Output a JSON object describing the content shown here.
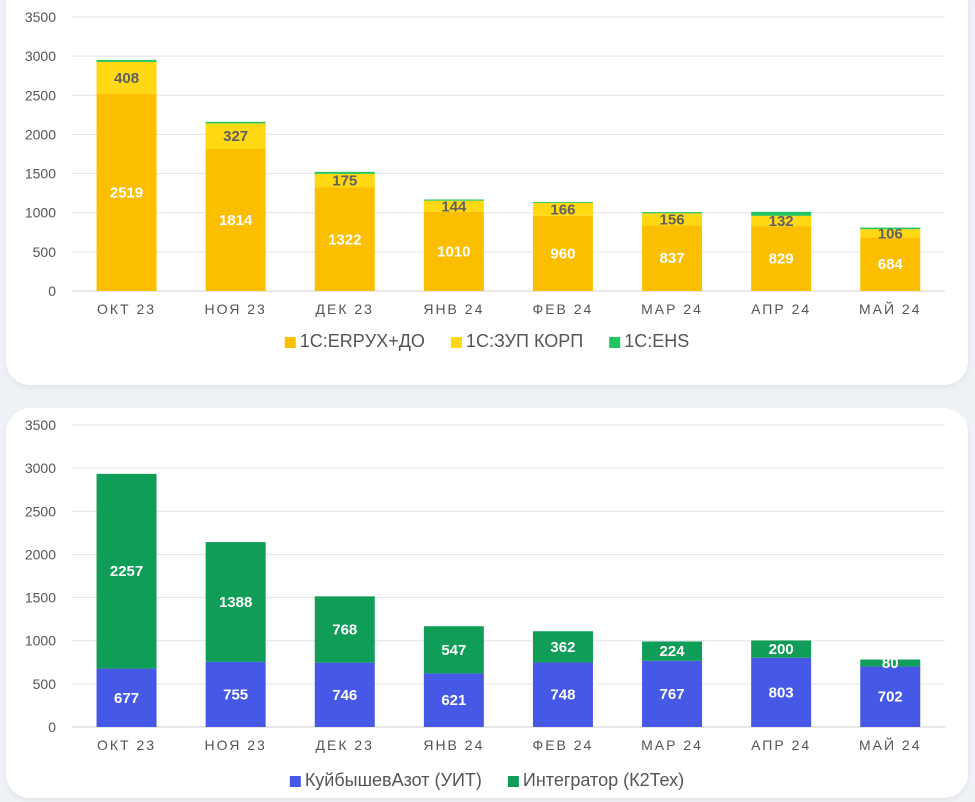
{
  "chart_data": [
    {
      "type": "bar",
      "stacked": true,
      "categories": [
        "ОКТ 23",
        "НОЯ 23",
        "ДЕК 23",
        "ЯНВ 24",
        "ФЕВ 24",
        "МАР 24",
        "АПР 24",
        "МАЙ 24"
      ],
      "yticks": [
        "0",
        "500",
        "1000",
        "1500",
        "2000",
        "2500",
        "3000",
        "3500"
      ],
      "ylim": [
        0,
        3500
      ],
      "legend_position": "bottom",
      "grid": true,
      "series": [
        {
          "name": "1С:ERPУХ+ДО",
          "color": "#fcbf00",
          "label_color": "#ffffff",
          "values": [
            2519,
            1814,
            1322,
            1010,
            960,
            837,
            829,
            684
          ],
          "labels": [
            "2519",
            "1814",
            "1322",
            "1010",
            "960",
            "837",
            "829",
            "684"
          ]
        },
        {
          "name": "1С:ЗУП КОРП",
          "color": "#ffd814",
          "label_color": "#606060",
          "values": [
            408,
            327,
            175,
            144,
            166,
            156,
            132,
            106
          ],
          "labels": [
            "408",
            "327",
            "175",
            "144",
            "166",
            "156",
            "132",
            "106"
          ]
        },
        {
          "name": "1С:EHS",
          "color": "#22c55e",
          "label_color": "#606060",
          "values": [
            25,
            20,
            25,
            15,
            12,
            15,
            50,
            20
          ],
          "labels": []
        }
      ]
    },
    {
      "type": "bar",
      "stacked": true,
      "categories": [
        "ОКТ 23",
        "НОЯ 23",
        "ДЕК 23",
        "ЯНВ 24",
        "ФЕВ 24",
        "МАР 24",
        "АПР 24",
        "МАЙ 24"
      ],
      "yticks": [
        "0",
        "500",
        "1000",
        "1500",
        "2000",
        "2500",
        "3000",
        "3500"
      ],
      "ylim": [
        0,
        3500
      ],
      "legend_position": "bottom",
      "grid": true,
      "series": [
        {
          "name": "КуйбышевАзот (УИТ)",
          "color": "#4659e6",
          "label_color": "#ffffff",
          "values": [
            677,
            755,
            746,
            621,
            748,
            767,
            803,
            702
          ],
          "labels": [
            "677",
            "755",
            "746",
            "621",
            "748",
            "767",
            "803",
            "702"
          ]
        },
        {
          "name": "Интегратор (К2Тех)",
          "color": "#0f9d58",
          "label_color": "#ffffff",
          "values": [
            2257,
            1388,
            768,
            547,
            362,
            224,
            200,
            80
          ],
          "labels": [
            "2257",
            "1388",
            "768",
            "547",
            "362",
            "224",
            "200",
            "80"
          ]
        }
      ]
    }
  ]
}
